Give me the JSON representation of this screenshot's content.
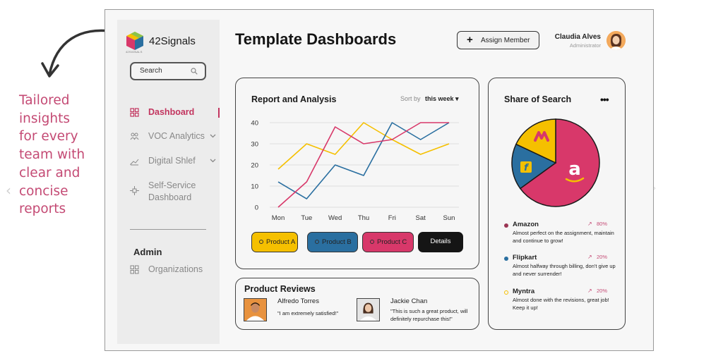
{
  "caption": [
    "Tailored",
    "insights",
    "for every",
    "team with",
    "clear and",
    "concise",
    "reports"
  ],
  "brand": {
    "name": "42Signals",
    "sub": "42SIGNALS"
  },
  "search": {
    "label": "Search"
  },
  "sidebar": {
    "items": [
      {
        "label": "Dashboard",
        "icon": "grid-icon",
        "active": true
      },
      {
        "label": "VOC Analytics",
        "icon": "users-icon"
      },
      {
        "label": "Digital Shlef",
        "icon": "trend-icon"
      },
      {
        "label": "Self-Service",
        "label2": "Dashboard",
        "icon": "workflow-icon"
      }
    ],
    "admin_title": "Admin",
    "admin_items": [
      {
        "label": "Organizations",
        "icon": "grid-icon"
      }
    ]
  },
  "header": {
    "title": "Template Dashboards",
    "assign_label": "Assign Member",
    "user_name": "Claudia Alves",
    "user_role": "Administrator"
  },
  "report": {
    "title": "Report and Analysis",
    "sort_label": "Sort by",
    "sort_value": "this week ▾",
    "legend": [
      "Product A",
      "Product B",
      "Product C"
    ],
    "details_label": "Details"
  },
  "chart_data": {
    "type": "line",
    "title": "Report and Analysis",
    "categories": [
      "Mon",
      "Tue",
      "Wed",
      "Thu",
      "Fri",
      "Sat",
      "Sun"
    ],
    "ylim": [
      0,
      40
    ],
    "yticks": [
      0,
      10,
      20,
      30,
      40
    ],
    "grid": true,
    "legend": "bottom",
    "series": [
      {
        "name": "Product A",
        "color": "#f5c000",
        "values": [
          18,
          30,
          25,
          40,
          32,
          25,
          30
        ]
      },
      {
        "name": "Product B",
        "color": "#2a6fa0",
        "values": [
          12,
          4,
          20,
          15,
          40,
          32,
          40
        ]
      },
      {
        "name": "Product C",
        "color": "#d8386a",
        "values": [
          0,
          12,
          38,
          30,
          32,
          40,
          40
        ]
      }
    ]
  },
  "reviews": {
    "title": "Product Reviews",
    "items": [
      {
        "name": "Alfredo Torres",
        "text": "\"I am extremely satisfied!\""
      },
      {
        "name": "Jackie Chan",
        "text": "\"This is such a great product, will definitely repurchase this!\""
      }
    ]
  },
  "share": {
    "title": "Share of Search",
    "more": "•••",
    "pie": [
      {
        "name": "Amazon",
        "value": 65,
        "color": "#d8386a"
      },
      {
        "name": "Flipkart",
        "value": 17,
        "color": "#2a6fa0"
      },
      {
        "name": "Myntra",
        "value": 18,
        "color": "#f5c000"
      }
    ],
    "items": [
      {
        "name": "Amazon",
        "trend": "↗",
        "pct": "80%",
        "color": "#9a3553",
        "desc": "Almost perfect on the assignment, maintain and continue to grow!"
      },
      {
        "name": "Flipkart",
        "trend": "↗",
        "pct": "20%",
        "color": "#2a6fa0",
        "desc": "Almost halfway through billing, don't give up and never surrender!"
      },
      {
        "name": "Myntra",
        "trend": "↗",
        "pct": "20%",
        "color": "#f5c000",
        "desc": "Almost done with the revisions, great job! Keep it up!"
      }
    ]
  }
}
